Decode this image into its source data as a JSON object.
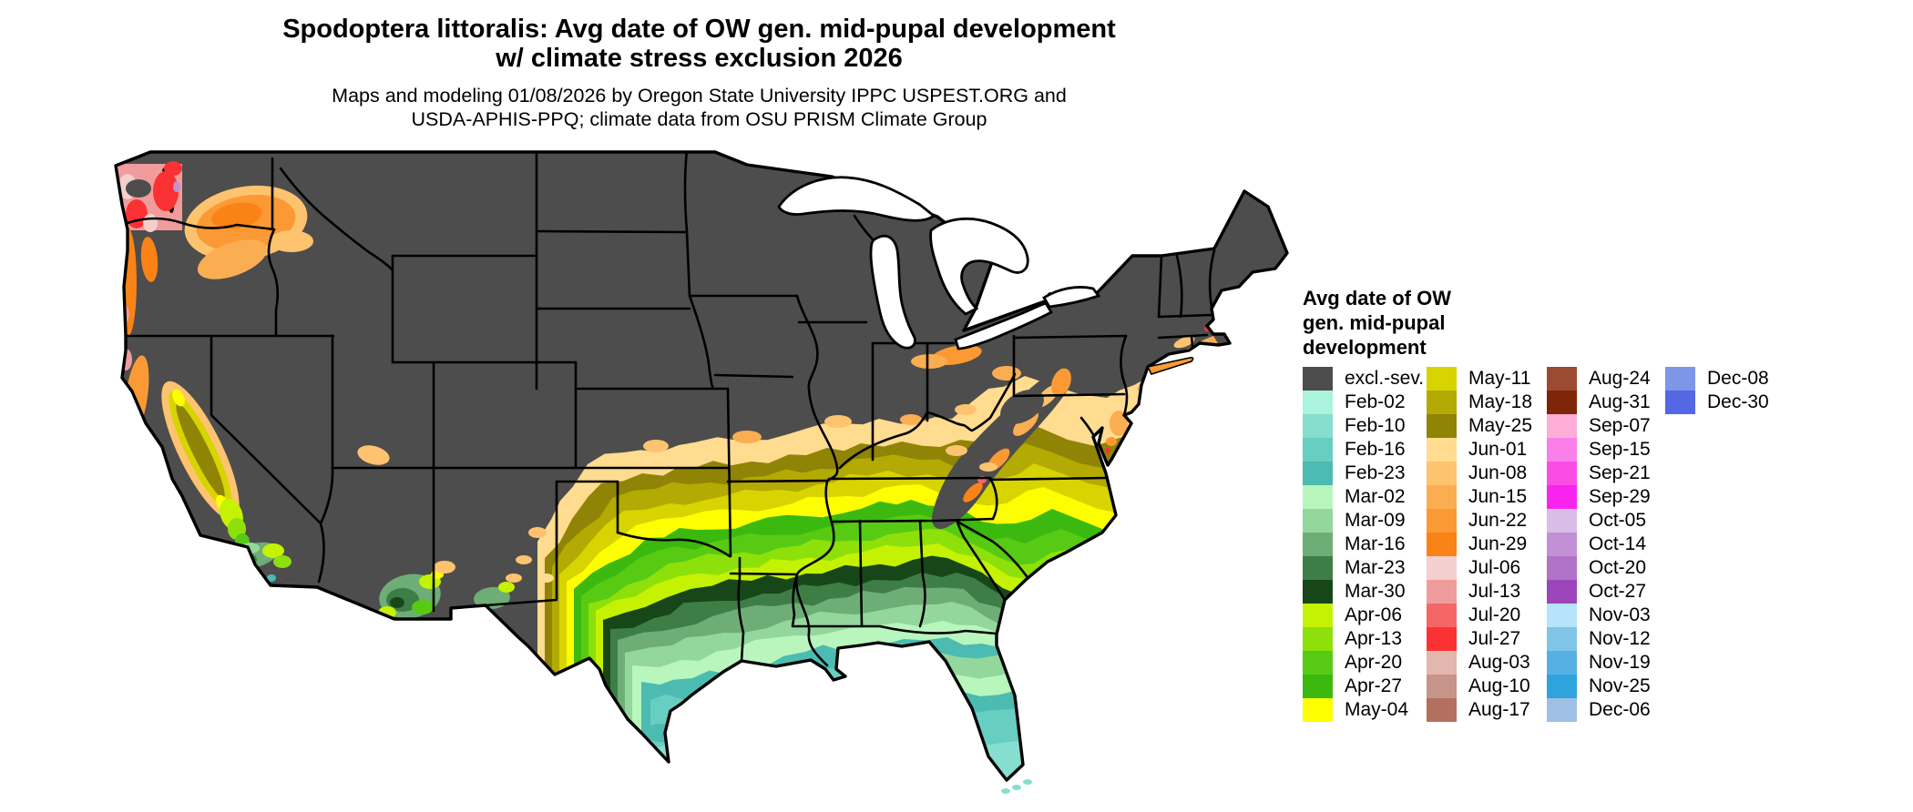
{
  "title": {
    "line1": "Spodoptera littoralis: Avg date of OW gen. mid-pupal development",
    "line2": "w/ climate stress exclusion 2026"
  },
  "subtitle": {
    "line1": "Maps and modeling 01/08/2026 by Oregon State University IPPC USPEST.ORG and",
    "line2": "USDA-APHIS-PPQ; climate data from OSU PRISM Climate Group"
  },
  "legend": {
    "title_lines": [
      "Avg date of OW",
      "gen. mid-pupal",
      "development"
    ],
    "columns": [
      [
        {
          "key": "excl_sev",
          "label": "excl.-sev.",
          "color": "#4d4d4d"
        },
        {
          "key": "feb02",
          "label": "Feb-02",
          "color": "#abf3dc"
        },
        {
          "key": "feb10",
          "label": "Feb-10",
          "color": "#86dece"
        },
        {
          "key": "feb16",
          "label": "Feb-16",
          "color": "#67cec1"
        },
        {
          "key": "feb23",
          "label": "Feb-23",
          "color": "#4cbbb1"
        },
        {
          "key": "mar02",
          "label": "Mar-02",
          "color": "#b8f6bd"
        },
        {
          "key": "mar09",
          "label": "Mar-09",
          "color": "#93d79c"
        },
        {
          "key": "mar16",
          "label": "Mar-16",
          "color": "#6eae76"
        },
        {
          "key": "mar23",
          "label": "Mar-23",
          "color": "#3e7e46"
        },
        {
          "key": "mar30",
          "label": "Mar-30",
          "color": "#174718"
        },
        {
          "key": "apr06",
          "label": "Apr-06",
          "color": "#c4f202"
        },
        {
          "key": "apr13",
          "label": "Apr-13",
          "color": "#8ee00a"
        },
        {
          "key": "apr20",
          "label": "Apr-20",
          "color": "#57cb14"
        },
        {
          "key": "apr27",
          "label": "Apr-27",
          "color": "#3bb90e"
        },
        {
          "key": "may04",
          "label": "May-04",
          "color": "#fdfe02"
        }
      ],
      [
        {
          "key": "may11",
          "label": "May-11",
          "color": "#d8d402"
        },
        {
          "key": "may18",
          "label": "May-18",
          "color": "#b3aa04"
        },
        {
          "key": "may25",
          "label": "May-25",
          "color": "#8f8406"
        },
        {
          "key": "jun01",
          "label": "Jun-01",
          "color": "#ffdc8f"
        },
        {
          "key": "jun08",
          "label": "Jun-08",
          "color": "#fec36e"
        },
        {
          "key": "jun15",
          "label": "Jun-15",
          "color": "#fbad52"
        },
        {
          "key": "jun22",
          "label": "Jun-22",
          "color": "#fb9a34"
        },
        {
          "key": "jun29",
          "label": "Jun-29",
          "color": "#fa8317"
        },
        {
          "key": "jul06",
          "label": "Jul-06",
          "color": "#f3cfce"
        },
        {
          "key": "jul13",
          "label": "Jul-13",
          "color": "#f19c9c"
        },
        {
          "key": "jul20",
          "label": "Jul-20",
          "color": "#f56767"
        },
        {
          "key": "jul27",
          "label": "Jul-27",
          "color": "#fb3233"
        },
        {
          "key": "aug03",
          "label": "Aug-03",
          "color": "#e3b6ae"
        },
        {
          "key": "aug10",
          "label": "Aug-10",
          "color": "#c79489"
        },
        {
          "key": "aug17",
          "label": "Aug-17",
          "color": "#b4705f"
        }
      ],
      [
        {
          "key": "aug24",
          "label": "Aug-24",
          "color": "#9d4a33"
        },
        {
          "key": "aug31",
          "label": "Aug-31",
          "color": "#7e2508"
        },
        {
          "key": "sep07",
          "label": "Sep-07",
          "color": "#ffaed8"
        },
        {
          "key": "sep15",
          "label": "Sep-15",
          "color": "#fb7fe8"
        },
        {
          "key": "sep21",
          "label": "Sep-21",
          "color": "#fb4ce5"
        },
        {
          "key": "sep29",
          "label": "Sep-29",
          "color": "#f923f0"
        },
        {
          "key": "oct05",
          "label": "Oct-05",
          "color": "#d9bce7"
        },
        {
          "key": "oct14",
          "label": "Oct-14",
          "color": "#c291d5"
        },
        {
          "key": "oct20",
          "label": "Oct-20",
          "color": "#b172c8"
        },
        {
          "key": "oct27",
          "label": "Oct-27",
          "color": "#9c45bb"
        },
        {
          "key": "nov03",
          "label": "Nov-03",
          "color": "#b6e4fb"
        },
        {
          "key": "nov12",
          "label": "Nov-12",
          "color": "#80c5e8"
        },
        {
          "key": "nov19",
          "label": "Nov-19",
          "color": "#57b0e4"
        },
        {
          "key": "nov25",
          "label": "Nov-25",
          "color": "#2fa3dc"
        },
        {
          "key": "dec06",
          "label": "Dec-06",
          "color": "#a0bfe4"
        }
      ],
      [
        {
          "key": "dec08",
          "label": "Dec-08",
          "color": "#7d96e8"
        },
        {
          "key": "dec30",
          "label": "Dec-30",
          "color": "#5568e4"
        }
      ]
    ]
  },
  "map": {
    "background": "#ffffff",
    "state_border_color": "#000000",
    "excluded_color": "#4d4d4d",
    "water_color": "#ffffff"
  }
}
